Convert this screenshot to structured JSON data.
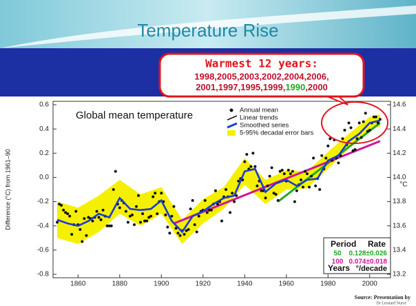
{
  "slide": {
    "title": "Temperature Rise",
    "source": "Source: Presentation by",
    "source_author": "Dr Leonard Nurse"
  },
  "chart_data": {
    "type": "scatter",
    "title": "Global mean temperature",
    "ylabel": "Difference (°C) from 1961–90",
    "y2label": "°C",
    "callout": {
      "heading": "Warmest 12 years:",
      "line1": "1998,2005,2003,2002,2004,2006,",
      "line2_start": "2001,1997,1995,1999,",
      "line2_highlight": "1990",
      "line2_end": ",2000",
      "color": "#e0141b",
      "text_color": "#c0102a",
      "highlight_color": "#1fa81f"
    },
    "xlim": [
      1848,
      2010
    ],
    "xticks": [
      1860,
      1880,
      1900,
      1920,
      1940,
      1960,
      1980,
      2000
    ],
    "ylim": [
      -0.8,
      0.6
    ],
    "yticks": [
      -0.8,
      -0.6,
      -0.4,
      -0.2,
      {
        "value": 0,
        "label": "0.0"
      },
      0.2,
      0.4,
      0.6
    ],
    "y2lim": [
      13.2,
      14.6
    ],
    "y2ticks": [
      13.2,
      13.4,
      13.6,
      13.8,
      {
        "value": 14,
        "label": "14.0"
      },
      14.2,
      14.4,
      14.6
    ],
    "series": [
      {
        "name": "Annual mean",
        "type": "scatter",
        "color": "#111111",
        "x": [
          1850,
          1851,
          1852,
          1853,
          1854,
          1855,
          1856,
          1857,
          1858,
          1859,
          1860,
          1861,
          1862,
          1863,
          1864,
          1865,
          1866,
          1867,
          1868,
          1869,
          1870,
          1871,
          1872,
          1873,
          1874,
          1875,
          1876,
          1877,
          1878,
          1879,
          1880,
          1881,
          1882,
          1883,
          1884,
          1885,
          1886,
          1887,
          1888,
          1889,
          1890,
          1891,
          1892,
          1893,
          1894,
          1895,
          1896,
          1897,
          1898,
          1899,
          1900,
          1901,
          1902,
          1903,
          1904,
          1905,
          1906,
          1907,
          1908,
          1909,
          1910,
          1911,
          1912,
          1913,
          1914,
          1915,
          1916,
          1917,
          1918,
          1919,
          1920,
          1921,
          1922,
          1923,
          1924,
          1925,
          1926,
          1927,
          1928,
          1929,
          1930,
          1931,
          1932,
          1933,
          1934,
          1935,
          1936,
          1937,
          1938,
          1939,
          1940,
          1941,
          1942,
          1943,
          1944,
          1945,
          1946,
          1947,
          1948,
          1949,
          1950,
          1951,
          1952,
          1953,
          1954,
          1955,
          1956,
          1957,
          1958,
          1959,
          1960,
          1961,
          1962,
          1963,
          1964,
          1965,
          1966,
          1967,
          1968,
          1969,
          1970,
          1971,
          1972,
          1973,
          1974,
          1975,
          1976,
          1977,
          1978,
          1979,
          1980,
          1981,
          1982,
          1983,
          1984,
          1985,
          1986,
          1987,
          1988,
          1989,
          1990,
          1991,
          1992,
          1993,
          1994,
          1995,
          1996,
          1997,
          1998,
          1999,
          2000,
          2001,
          2002,
          2003,
          2004,
          2005
        ],
        "values": [
          -0.37,
          -0.22,
          -0.23,
          -0.27,
          -0.29,
          -0.3,
          -0.32,
          -0.47,
          -0.39,
          -0.28,
          -0.39,
          -0.43,
          -0.53,
          -0.34,
          -0.48,
          -0.33,
          -0.34,
          -0.36,
          -0.33,
          -0.28,
          -0.33,
          -0.35,
          -0.27,
          -0.32,
          -0.4,
          -0.4,
          -0.4,
          -0.1,
          0.05,
          -0.22,
          -0.25,
          -0.19,
          -0.21,
          -0.28,
          -0.37,
          -0.32,
          -0.31,
          -0.39,
          -0.24,
          -0.15,
          -0.37,
          -0.3,
          -0.36,
          -0.36,
          -0.33,
          -0.32,
          -0.16,
          -0.13,
          -0.3,
          -0.2,
          -0.13,
          -0.2,
          -0.31,
          -0.41,
          -0.46,
          -0.32,
          -0.24,
          -0.42,
          -0.46,
          -0.48,
          -0.44,
          -0.47,
          -0.44,
          -0.43,
          -0.26,
          -0.19,
          -0.39,
          -0.45,
          -0.32,
          -0.28,
          -0.27,
          -0.19,
          -0.29,
          -0.27,
          -0.27,
          -0.22,
          -0.11,
          -0.22,
          -0.2,
          -0.36,
          -0.16,
          -0.1,
          -0.16,
          -0.29,
          -0.13,
          -0.2,
          -0.15,
          -0.03,
          -0.01,
          -0.02,
          0.13,
          0.19,
          0.07,
          0.09,
          0.2,
          0.09,
          -0.07,
          -0.03,
          -0.11,
          -0.11,
          -0.17,
          -0.07,
          0.01,
          0.08,
          -0.13,
          -0.14,
          -0.19,
          0.05,
          0.06,
          0.03,
          -0.03,
          0.06,
          0.03,
          0.05,
          -0.2,
          -0.11,
          -0.06,
          -0.02,
          -0.08,
          0.05,
          0.03,
          -0.08,
          0.01,
          0.16,
          -0.07,
          -0.01,
          -0.1,
          0.18,
          0.07,
          0.16,
          0.26,
          0.32,
          0.14,
          0.31,
          0.16,
          0.12,
          0.18,
          0.32,
          0.39,
          0.27,
          0.45,
          0.41,
          0.22,
          0.23,
          0.32,
          0.45,
          0.33,
          0.46,
          0.53,
          0.38,
          0.39,
          0.45,
          0.5,
          0.5,
          0.45,
          0.48
        ]
      },
      {
        "name": "Smoothed series",
        "type": "line",
        "color": "#1e3cd6",
        "x": [
          1850,
          1855,
          1860,
          1865,
          1870,
          1875,
          1880,
          1885,
          1890,
          1895,
          1900,
          1905,
          1910,
          1915,
          1920,
          1925,
          1930,
          1935,
          1940,
          1945,
          1950,
          1955,
          1960,
          1965,
          1970,
          1975,
          1980,
          1985,
          1990,
          1995,
          2000,
          2005
        ],
        "values": [
          -0.35,
          -0.38,
          -0.4,
          -0.36,
          -0.3,
          -0.33,
          -0.17,
          -0.26,
          -0.27,
          -0.26,
          -0.19,
          -0.36,
          -0.45,
          -0.32,
          -0.28,
          -0.22,
          -0.17,
          -0.15,
          0.05,
          0.07,
          -0.12,
          -0.05,
          -0.02,
          -0.07,
          -0.02,
          -0.01,
          0.14,
          0.18,
          0.3,
          0.36,
          0.45,
          0.47
        ]
      },
      {
        "name": "5-95% decadal error bars",
        "type": "band",
        "color": "#f5f000",
        "x": [
          1850,
          1860,
          1870,
          1880,
          1890,
          1900,
          1910,
          1920,
          1930,
          1940,
          1950,
          1960,
          1970,
          1980,
          1990,
          2000,
          2005
        ],
        "lower": [
          -0.5,
          -0.55,
          -0.45,
          -0.3,
          -0.4,
          -0.3,
          -0.55,
          -0.38,
          -0.26,
          -0.06,
          -0.22,
          -0.1,
          -0.09,
          0.07,
          0.24,
          0.4,
          0.42
        ],
        "upper": [
          -0.2,
          -0.25,
          -0.15,
          -0.02,
          -0.14,
          -0.08,
          -0.35,
          -0.18,
          -0.08,
          0.16,
          -0.02,
          0.06,
          0.05,
          0.21,
          0.36,
          0.5,
          0.52
        ]
      }
    ],
    "trends": {
      "name": "Linear trends",
      "color": "#111111",
      "lines": [
        {
          "period": 50,
          "rate": "0.128±0.026",
          "color": "#1fa81f",
          "x": [
            1956,
            2005
          ],
          "values": [
            -0.2,
            0.45
          ]
        },
        {
          "period": 100,
          "rate": "0.074±0.018",
          "color": "#d0139a",
          "x": [
            1906,
            2005
          ],
          "values": [
            -0.38,
            0.3
          ]
        }
      ]
    },
    "rate_table": {
      "header": [
        "Period",
        "Rate"
      ],
      "footer": [
        "Years",
        "°/decade"
      ]
    }
  }
}
